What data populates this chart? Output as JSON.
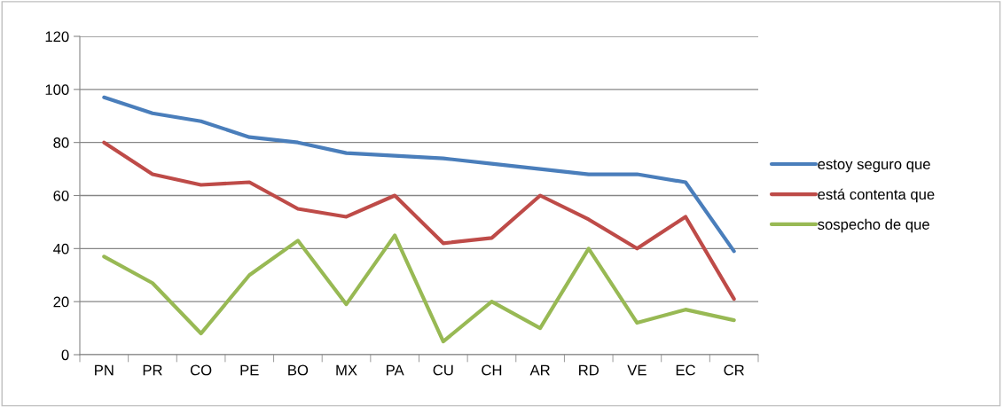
{
  "chart_data": {
    "type": "line",
    "categories": [
      "PN",
      "PR",
      "CO",
      "PE",
      "BO",
      "MX",
      "PA",
      "CU",
      "CH",
      "AR",
      "RD",
      "VE",
      "EC",
      "CR"
    ],
    "series": [
      {
        "name": "estoy seguro que",
        "color": "#4a7ebb",
        "values": [
          97,
          91,
          88,
          82,
          80,
          76,
          75,
          74,
          72,
          70,
          68,
          68,
          65,
          39
        ]
      },
      {
        "name": "está contenta que",
        "color": "#be4b48",
        "values": [
          80,
          68,
          64,
          65,
          55,
          52,
          60,
          42,
          44,
          60,
          51,
          40,
          52,
          21
        ]
      },
      {
        "name": "sospecho de que",
        "color": "#98b954",
        "values": [
          37,
          27,
          8,
          30,
          43,
          19,
          45,
          5,
          20,
          10,
          40,
          12,
          17,
          13
        ]
      }
    ],
    "ylim": [
      0,
      120
    ],
    "yticks": [
      0,
      20,
      40,
      60,
      80,
      100,
      120
    ],
    "grid": "y",
    "legend": "right",
    "marker": "none",
    "line_style": "solid"
  }
}
